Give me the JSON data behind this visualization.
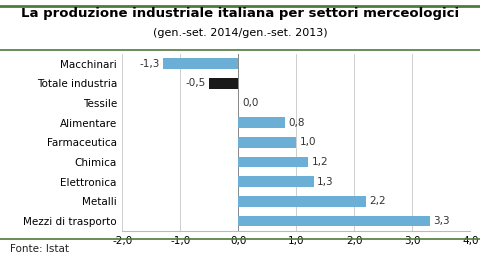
{
  "title": "La produzione industriale italiana per settori merceologici",
  "subtitle": "(gen.-set. 2014/gen.-set. 2013)",
  "categories": [
    "Macchinari",
    "Totale industria",
    "Tessile",
    "Alimentare",
    "Farmaceutica",
    "Chimica",
    "Elettronica",
    "Metalli",
    "Mezzi di trasporto"
  ],
  "values": [
    -1.3,
    -0.5,
    0.0,
    0.8,
    1.0,
    1.2,
    1.3,
    2.2,
    3.3
  ],
  "bar_colors": [
    "#6baed6",
    "#1a1a1a",
    "#6baed6",
    "#6baed6",
    "#6baed6",
    "#6baed6",
    "#6baed6",
    "#6baed6",
    "#6baed6"
  ],
  "xlim": [
    -2.0,
    4.0
  ],
  "xticks": [
    -2.0,
    -1.0,
    0.0,
    1.0,
    2.0,
    3.0,
    4.0
  ],
  "background_color": "#ffffff",
  "plot_bg_color": "#ffffff",
  "title_fontsize": 9.5,
  "subtitle_fontsize": 8,
  "tick_fontsize": 7.5,
  "label_fontsize": 7.5,
  "value_fontsize": 7.5,
  "footer": "Fonte: Istat",
  "title_color": "#000000",
  "bar_height": 0.55,
  "grid_color": "#bbbbbb",
  "border_color": "#4e7a3a"
}
